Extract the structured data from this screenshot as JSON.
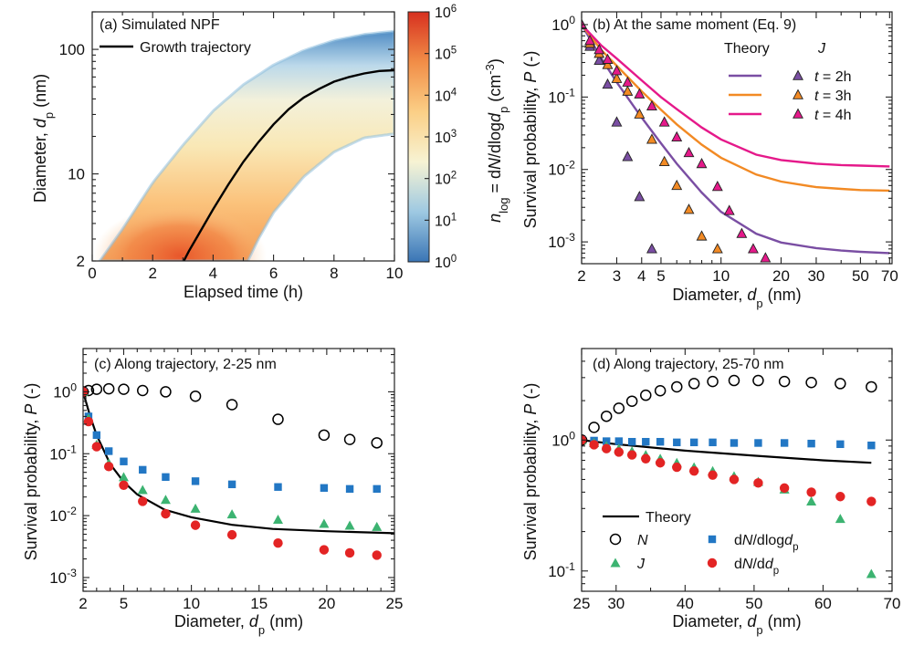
{
  "chart_data": [
    {
      "panel": "a",
      "type": "heatmap",
      "title": "(a) Simulated NPF",
      "xlabel": "Elapsed time (h)",
      "ylabel": "Diameter, d_p (nm)",
      "xlim": [
        0,
        10
      ],
      "ylim": [
        2,
        200
      ],
      "yscale": "log",
      "xticks": [
        0,
        2,
        4,
        6,
        8,
        10
      ],
      "yticks": [
        2,
        10,
        100
      ],
      "legend": [
        "Growth trajectory"
      ],
      "legend_position": "top-left",
      "colorbar": {
        "label": "n_log = dN/dlogd_p (cm^-3)",
        "scale": "log",
        "ticks": [
          "10^0",
          "10^1",
          "10^2",
          "10^3",
          "10^4",
          "10^5",
          "10^6"
        ],
        "range": [
          1,
          1000000
        ],
        "colormap": [
          "#3a75b5",
          "#9ec9e2",
          "#f7f3d3",
          "#fbcf86",
          "#f18d47",
          "#d7301f"
        ]
      },
      "trajectory": {
        "name": "Growth trajectory",
        "x": [
          3.03,
          3.2,
          3.5,
          4.0,
          4.5,
          5.0,
          5.5,
          6.0,
          6.5,
          7.0,
          7.5,
          8.0,
          8.5,
          9.0,
          9.5,
          10.0
        ],
        "y": [
          2.0,
          2.4,
          3.2,
          5.2,
          8.2,
          12.5,
          18,
          25,
          33,
          41,
          48,
          55,
          60,
          64,
          67,
          68
        ]
      },
      "band_upper": {
        "x": [
          0.25,
          1.0,
          2.0,
          3.0,
          4.0,
          5.0,
          6.0,
          7.0,
          8.0,
          9.0,
          10.0
        ],
        "y": [
          2.0,
          3.6,
          8.5,
          17,
          32,
          52,
          75,
          98,
          118,
          132,
          140
        ]
      },
      "band_lower": {
        "x": [
          5.15,
          5.5,
          6.0,
          7.0,
          8.0,
          9.0,
          10.0
        ],
        "y": [
          2.0,
          3.0,
          4.9,
          9.5,
          15,
          19.5,
          21
        ]
      }
    },
    {
      "panel": "b",
      "type": "scatter",
      "title": "(b) At the same moment (Eq. 9)",
      "xlabel": "Diameter, d_p (nm)",
      "ylabel": "Survival probability, P (-)",
      "xscale": "log",
      "yscale": "log",
      "xlim": [
        2,
        72
      ],
      "ylim": [
        0.0005,
        1.5
      ],
      "xticks": [
        2,
        3,
        4,
        5,
        10,
        20,
        30,
        50,
        70
      ],
      "yticks": [
        "10^0",
        "10^-1",
        "10^-2",
        "10^-3"
      ],
      "legend_headers": [
        "Theory",
        "J"
      ],
      "legend_position": "top-right",
      "series": [
        {
          "name": "t = 2h",
          "color": "#7a4ea3",
          "theory": {
            "x": [
              2,
              2.5,
              3,
              4,
              5,
              6,
              8,
              10,
              15,
              20,
              30,
              40,
              50,
              70
            ],
            "y": [
              1.0,
              0.35,
              0.16,
              0.052,
              0.023,
              0.012,
              0.0048,
              0.0026,
              0.0013,
              0.00098,
              0.00082,
              0.00076,
              0.00073,
              0.0007
            ]
          },
          "J": {
            "x": [
              2.0,
              2.2,
              2.45,
              2.7,
              3.0,
              3.4,
              3.9,
              4.5
            ],
            "y": [
              1.0,
              0.5,
              0.32,
              0.15,
              0.045,
              0.015,
              0.0042,
              0.0008
            ]
          }
        },
        {
          "name": "t = 3h",
          "color": "#f28a24",
          "theory": {
            "x": [
              2,
              2.5,
              3,
              4,
              5,
              6,
              8,
              10,
              15,
              20,
              30,
              40,
              50,
              70
            ],
            "y": [
              1.0,
              0.45,
              0.27,
              0.12,
              0.067,
              0.042,
              0.022,
              0.0145,
              0.0085,
              0.0068,
              0.0057,
              0.0054,
              0.0052,
              0.0051
            ]
          },
          "J": {
            "x": [
              2.0,
              2.2,
              2.45,
              2.7,
              3.0,
              3.4,
              3.9,
              4.5,
              5.2,
              6.0,
              6.9,
              8.0,
              9.6
            ],
            "y": [
              1.0,
              0.55,
              0.4,
              0.28,
              0.18,
              0.12,
              0.058,
              0.026,
              0.0128,
              0.006,
              0.0028,
              0.0012,
              0.0008
            ]
          }
        },
        {
          "name": "t = 4h",
          "color": "#e5198a",
          "theory": {
            "x": [
              2,
              2.5,
              3,
              4,
              5,
              6,
              8,
              10,
              15,
              20,
              30,
              40,
              50,
              70
            ],
            "y": [
              1.0,
              0.52,
              0.34,
              0.17,
              0.1,
              0.068,
              0.038,
              0.026,
              0.016,
              0.0135,
              0.012,
              0.0115,
              0.0113,
              0.011
            ]
          },
          "J": {
            "x": [
              2.0,
              2.2,
              2.45,
              2.7,
              3.0,
              3.4,
              3.9,
              4.5,
              5.2,
              6.0,
              6.9,
              8.0,
              9.6,
              11.0,
              12.7,
              14.5,
              16.7
            ],
            "y": [
              1.0,
              0.6,
              0.45,
              0.33,
              0.23,
              0.16,
              0.11,
              0.075,
              0.045,
              0.028,
              0.017,
              0.012,
              0.0058,
              0.0027,
              0.0013,
              0.0008,
              0.0006
            ]
          }
        }
      ]
    },
    {
      "panel": "c",
      "type": "scatter",
      "title": "(c) Along trajectory, 2-25 nm",
      "xlabel": "Diameter, d_p (nm)",
      "ylabel": "Survival probability, P (-)",
      "yscale": "log",
      "xlim": [
        2,
        25
      ],
      "ylim": [
        0.0006,
        5
      ],
      "xticks": [
        2,
        5,
        10,
        15,
        20,
        25
      ],
      "yticks": [
        "10^0",
        "10^-1",
        "10^-2",
        "10^-3"
      ],
      "theory": {
        "x": [
          2,
          2.5,
          3,
          4,
          5,
          6,
          8,
          10,
          13,
          16,
          20,
          25
        ],
        "y": [
          1.0,
          0.42,
          0.2,
          0.068,
          0.035,
          0.022,
          0.0125,
          0.0094,
          0.0071,
          0.0061,
          0.0056,
          0.0052
        ]
      },
      "series": [
        {
          "name": "N",
          "marker": "open-circle",
          "color": "#000000",
          "x": [
            2.0,
            2.4,
            3.0,
            3.9,
            5.0,
            6.4,
            8.1,
            10.3,
            13.0,
            16.4,
            19.8,
            21.7,
            23.7
          ],
          "y": [
            1.0,
            1.05,
            1.1,
            1.12,
            1.1,
            1.05,
            1.0,
            0.85,
            0.62,
            0.36,
            0.2,
            0.17,
            0.15
          ]
        },
        {
          "name": "dN/dlogd_p",
          "marker": "square",
          "color": "#2277c4",
          "x": [
            2.0,
            2.4,
            3.0,
            3.9,
            5.0,
            6.4,
            8.1,
            10.3,
            13.0,
            16.4,
            19.8,
            21.7,
            23.7
          ],
          "y": [
            1.0,
            0.4,
            0.2,
            0.11,
            0.075,
            0.055,
            0.042,
            0.036,
            0.032,
            0.029,
            0.028,
            0.027,
            0.027
          ]
        },
        {
          "name": "J",
          "marker": "triangle",
          "color": "#3cb371",
          "x": [
            2.0,
            2.4,
            3.0,
            3.9,
            5.0,
            6.4,
            8.1,
            10.3,
            13.0,
            16.4,
            19.8,
            21.7,
            23.7
          ],
          "y": [
            1.0,
            0.37,
            0.14,
            0.07,
            0.042,
            0.026,
            0.018,
            0.013,
            0.0105,
            0.0086,
            0.0074,
            0.0069,
            0.0066
          ]
        },
        {
          "name": "dN/dd_p",
          "marker": "filled-circle",
          "color": "#e32424",
          "x": [
            2.0,
            2.4,
            3.0,
            3.9,
            5.0,
            6.4,
            8.1,
            10.3,
            13.0,
            16.4,
            19.8,
            21.7,
            23.7
          ],
          "y": [
            1.0,
            0.33,
            0.13,
            0.062,
            0.031,
            0.017,
            0.0107,
            0.007,
            0.0049,
            0.0036,
            0.0028,
            0.0025,
            0.0023
          ]
        }
      ]
    },
    {
      "panel": "d",
      "type": "scatter",
      "title": "(d) Along trajectory, 25-70 nm",
      "xlabel": "Diameter, d_p (nm)",
      "ylabel": "Survival probability, P (-)",
      "yscale": "log",
      "xlim": [
        25,
        70
      ],
      "ylim": [
        0.07,
        5
      ],
      "xticks": [
        25,
        30,
        40,
        50,
        60,
        70
      ],
      "yticks": [
        "10^0",
        "10^-1"
      ],
      "legend_position": "bottom-left",
      "theory": {
        "name": "Theory",
        "x": [
          25,
          30,
          40,
          50,
          60,
          67
        ],
        "y": [
          1.0,
          0.93,
          0.83,
          0.76,
          0.7,
          0.67
        ]
      },
      "series": [
        {
          "name": "N",
          "marker": "open-circle",
          "color": "#000000",
          "x": [
            25.0,
            26.8,
            28.6,
            30.4,
            32.3,
            34.3,
            36.4,
            38.8,
            41.3,
            44.0,
            47.1,
            50.6,
            54.4,
            58.3,
            62.5,
            67.0
          ],
          "y": [
            1.0,
            1.25,
            1.52,
            1.75,
            1.98,
            2.2,
            2.38,
            2.55,
            2.7,
            2.8,
            2.85,
            2.85,
            2.8,
            2.75,
            2.7,
            2.55
          ]
        },
        {
          "name": "dN/dlogd_p",
          "marker": "square",
          "color": "#2277c4",
          "x": [
            25.0,
            26.8,
            28.6,
            30.4,
            32.3,
            34.3,
            36.4,
            38.8,
            41.3,
            44.0,
            47.1,
            50.6,
            54.4,
            58.3,
            62.5,
            67.0
          ],
          "y": [
            1.0,
            0.99,
            0.98,
            0.98,
            0.97,
            0.97,
            0.97,
            0.96,
            0.96,
            0.96,
            0.95,
            0.95,
            0.95,
            0.94,
            0.93,
            0.91
          ]
        },
        {
          "name": "J",
          "marker": "triangle",
          "color": "#3cb371",
          "x": [
            25.0,
            26.8,
            28.6,
            30.4,
            32.3,
            34.3,
            36.4,
            38.8,
            41.3,
            44.0,
            47.1,
            50.6,
            54.4,
            58.3,
            62.5,
            67.0
          ],
          "y": [
            1.0,
            0.95,
            0.9,
            0.86,
            0.82,
            0.77,
            0.72,
            0.67,
            0.62,
            0.58,
            0.53,
            0.48,
            0.42,
            0.34,
            0.25,
            0.095
          ]
        },
        {
          "name": "dN/dd_p",
          "marker": "filled-circle",
          "color": "#e32424",
          "x": [
            25.0,
            26.8,
            28.6,
            30.4,
            32.3,
            34.3,
            36.4,
            38.8,
            41.3,
            44.0,
            47.1,
            50.6,
            54.4,
            58.3,
            62.5,
            67.0
          ],
          "y": [
            1.0,
            0.92,
            0.86,
            0.81,
            0.77,
            0.72,
            0.67,
            0.62,
            0.58,
            0.54,
            0.5,
            0.47,
            0.43,
            0.4,
            0.37,
            0.34
          ]
        }
      ]
    }
  ]
}
